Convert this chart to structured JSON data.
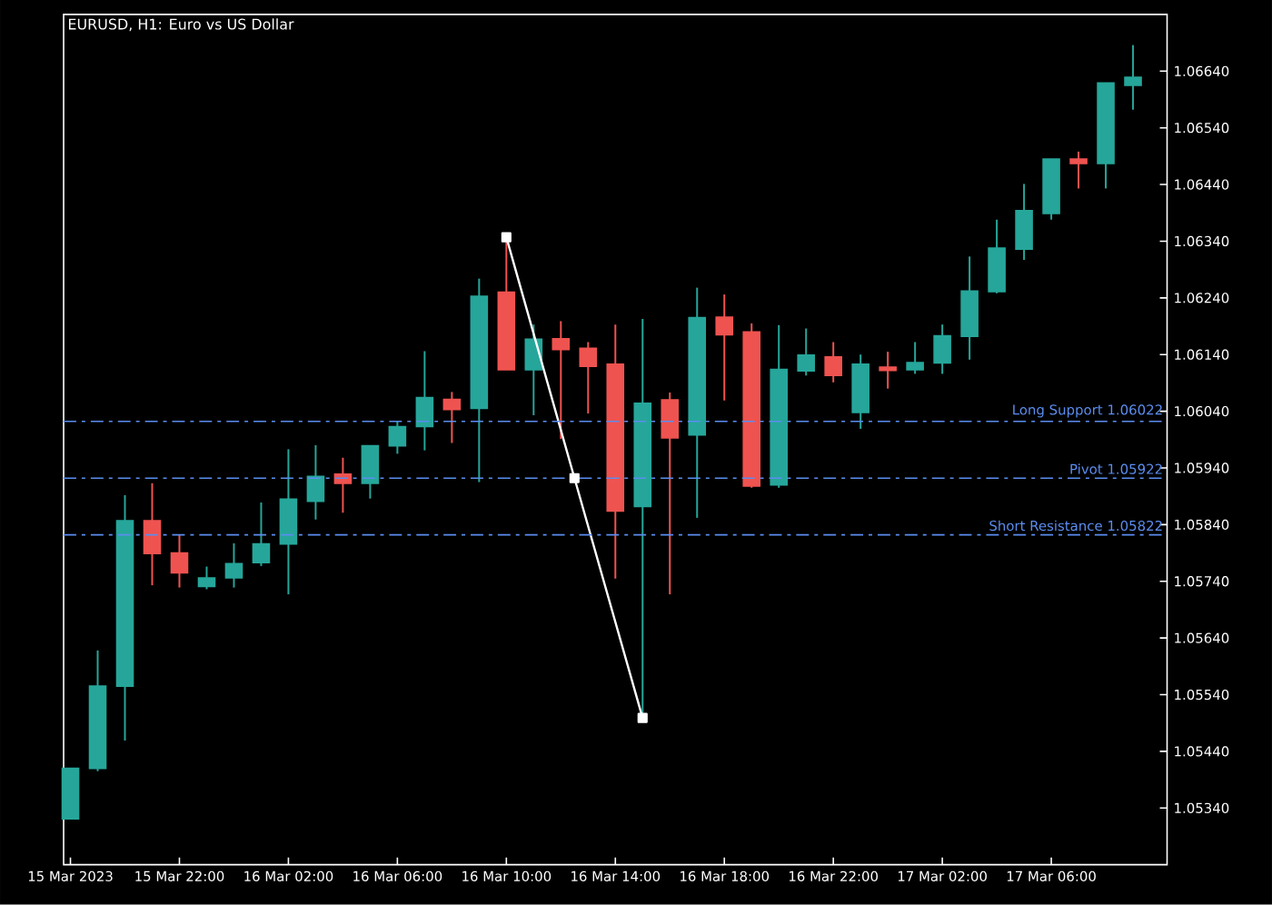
{
  "chart_data": {
    "type": "candlestick",
    "title": "EURUSD, H1:  Euro vs US Dollar",
    "x": [
      "2023-03-15T18:00",
      "2023-03-15T19:00",
      "2023-03-15T20:00",
      "2023-03-15T21:00",
      "2023-03-15T22:00",
      "2023-03-15T23:00",
      "2023-03-16T00:00",
      "2023-03-16T01:00",
      "2023-03-16T02:00",
      "2023-03-16T03:00",
      "2023-03-16T04:00",
      "2023-03-16T05:00",
      "2023-03-16T06:00",
      "2023-03-16T07:00",
      "2023-03-16T08:00",
      "2023-03-16T09:00",
      "2023-03-16T10:00",
      "2023-03-16T11:00",
      "2023-03-16T12:00",
      "2023-03-16T13:00",
      "2023-03-16T14:00",
      "2023-03-16T15:00",
      "2023-03-16T16:00",
      "2023-03-16T17:00",
      "2023-03-16T18:00",
      "2023-03-16T19:00",
      "2023-03-16T20:00",
      "2023-03-16T21:00",
      "2023-03-16T22:00",
      "2023-03-16T23:00",
      "2023-03-17T00:00",
      "2023-03-17T01:00",
      "2023-03-17T02:00",
      "2023-03-17T03:00",
      "2023-03-17T04:00",
      "2023-03-17T05:00",
      "2023-03-17T06:00",
      "2023-03-17T07:00",
      "2023-03-17T08:00",
      "2023-03-17T09:00"
    ],
    "ohlc": [
      [
        1.05321,
        1.0541,
        1.05321,
        1.0541
      ],
      [
        1.0541,
        1.05618,
        1.05405,
        1.05555
      ],
      [
        1.05555,
        1.05892,
        1.05459,
        1.05847
      ],
      [
        1.05847,
        1.05913,
        1.05733,
        1.05789
      ],
      [
        1.0579,
        1.05823,
        1.05729,
        1.05755
      ],
      [
        1.05731,
        1.05766,
        1.05726,
        1.05746
      ],
      [
        1.05746,
        1.05807,
        1.05729,
        1.05771
      ],
      [
        1.05773,
        1.05879,
        1.05767,
        1.05806
      ],
      [
        1.05806,
        1.05973,
        1.05717,
        1.05885
      ],
      [
        1.05881,
        1.0598,
        1.05849,
        1.05925
      ],
      [
        1.05929,
        1.05958,
        1.05861,
        1.05913
      ],
      [
        1.05913,
        1.05979,
        1.05886,
        1.05979
      ],
      [
        1.05979,
        1.06023,
        1.05965,
        1.06013
      ],
      [
        1.06013,
        1.06146,
        1.05971,
        1.06064
      ],
      [
        1.06061,
        1.06074,
        1.05984,
        1.06043
      ],
      [
        1.06045,
        1.06274,
        1.05915,
        1.06243
      ],
      [
        1.0625,
        1.06347,
        1.06113,
        1.06113
      ],
      [
        1.06113,
        1.06193,
        1.06033,
        1.06167
      ],
      [
        1.06168,
        1.06199,
        1.05991,
        1.06149
      ],
      [
        1.06151,
        1.06162,
        1.06036,
        1.06119
      ],
      [
        1.06123,
        1.06193,
        1.05745,
        1.05864
      ],
      [
        1.05872,
        1.06203,
        1.05499,
        1.06054
      ],
      [
        1.0606,
        1.06073,
        1.05717,
        1.05993
      ],
      [
        1.05998,
        1.06258,
        1.05852,
        1.06205
      ],
      [
        1.06206,
        1.06246,
        1.06059,
        1.06175
      ],
      [
        1.0618,
        1.06195,
        1.05905,
        1.05908
      ],
      [
        1.0591,
        1.06192,
        1.05905,
        1.06114
      ],
      [
        1.06111,
        1.06186,
        1.06103,
        1.06139
      ],
      [
        1.06136,
        1.06162,
        1.06091,
        1.06103
      ],
      [
        1.06038,
        1.0614,
        1.06009,
        1.06123
      ],
      [
        1.06118,
        1.06145,
        1.0608,
        1.06112
      ],
      [
        1.06113,
        1.06162,
        1.06106,
        1.06126
      ],
      [
        1.06125,
        1.06193,
        1.06106,
        1.06173
      ],
      [
        1.06172,
        1.06313,
        1.06131,
        1.06252
      ],
      [
        1.06251,
        1.06378,
        1.06248,
        1.06328
      ],
      [
        1.06326,
        1.06441,
        1.06307,
        1.06394
      ],
      [
        1.06389,
        1.06485,
        1.06378,
        1.06485
      ],
      [
        1.06485,
        1.06498,
        1.06433,
        1.06477
      ],
      [
        1.06477,
        1.06619,
        1.06433,
        1.06619
      ],
      [
        1.06615,
        1.06686,
        1.06572,
        1.06629
      ]
    ],
    "colors": [
      "#26a69a",
      "#26a69a",
      "#26a69a",
      "#ef5350",
      "#ef5350",
      "#26a69a",
      "#26a69a",
      "#26a69a",
      "#26a69a",
      "#26a69a",
      "#ef5350",
      "#26a69a",
      "#26a69a",
      "#26a69a",
      "#ef5350",
      "#26a69a",
      "#ef5350",
      "#26a69a",
      "#ef5350",
      "#ef5350",
      "#ef5350",
      "#26a69a",
      "#ef5350",
      "#26a69a",
      "#ef5350",
      "#ef5350",
      "#26a69a",
      "#26a69a",
      "#ef5350",
      "#26a69a",
      "#ef5350",
      "#26a69a",
      "#26a69a",
      "#26a69a",
      "#26a69a",
      "#26a69a",
      "#26a69a",
      "#ef5350",
      "#26a69a",
      "#26a69a"
    ],
    "series": [
      {
        "type": "line",
        "x": [
          "2023-03-16T10:00",
          "2023-03-16T12:30",
          "2023-03-16T15:00"
        ],
        "values": [
          1.06347,
          1.05922,
          1.05499
        ],
        "color": "#ffffff",
        "marker": "square"
      }
    ],
    "ref_lines": [
      {
        "axis": "y",
        "value": 1.06022,
        "label": "Long Support 1.06022",
        "color": "#5b8def",
        "line_style": "dashed"
      },
      {
        "axis": "y",
        "value": 1.05922,
        "label": "Pivot 1.05922",
        "color": "#5b8def",
        "line_style": "dashed"
      },
      {
        "axis": "y",
        "value": 1.05822,
        "label": "Short Resistance 1.05822",
        "color": "#5b8def",
        "line_style": "dashed"
      }
    ],
    "xlim": [
      "2023-03-15T17:45",
      "2023-03-17T10:15"
    ],
    "xticks": [
      {
        "value": "2023-03-15T18:00",
        "label": "15 Mar 2023"
      },
      {
        "value": "2023-03-15T22:00",
        "label": "15 Mar 22:00"
      },
      {
        "value": "2023-03-16T02:00",
        "label": "16 Mar 02:00"
      },
      {
        "value": "2023-03-16T06:00",
        "label": "16 Mar 06:00"
      },
      {
        "value": "2023-03-16T10:00",
        "label": "16 Mar 10:00"
      },
      {
        "value": "2023-03-16T14:00",
        "label": "16 Mar 14:00"
      },
      {
        "value": "2023-03-16T18:00",
        "label": "16 Mar 18:00"
      },
      {
        "value": "2023-03-16T22:00",
        "label": "16 Mar 22:00"
      },
      {
        "value": "2023-03-17T02:00",
        "label": "17 Mar 02:00"
      },
      {
        "value": "2023-03-17T06:00",
        "label": "17 Mar 06:00"
      }
    ],
    "ylim": [
      1.0524,
      1.0674
    ],
    "yticks": [
      {
        "value": 1.0534,
        "label": "1.05340"
      },
      {
        "value": 1.0544,
        "label": "1.05440"
      },
      {
        "value": 1.0554,
        "label": "1.05540"
      },
      {
        "value": 1.0564,
        "label": "1.05640"
      },
      {
        "value": 1.0574,
        "label": "1.05740"
      },
      {
        "value": 1.0584,
        "label": "1.05840"
      },
      {
        "value": 1.0594,
        "label": "1.05940"
      },
      {
        "value": 1.0604,
        "label": "1.06040"
      },
      {
        "value": 1.0614,
        "label": "1.06140"
      },
      {
        "value": 1.0624,
        "label": "1.06240"
      },
      {
        "value": 1.0634,
        "label": "1.06340"
      },
      {
        "value": 1.0644,
        "label": "1.06440"
      },
      {
        "value": 1.0654,
        "label": "1.06540"
      },
      {
        "value": 1.0664,
        "label": "1.06640"
      }
    ],
    "tick_labels": "xy"
  }
}
